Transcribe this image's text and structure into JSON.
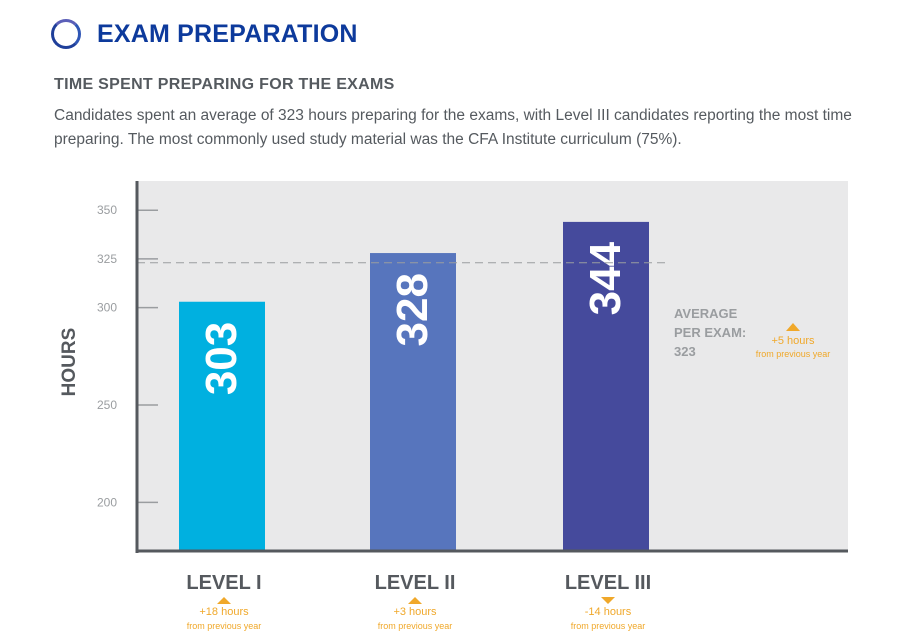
{
  "header": {
    "title": "EXAM PREPARATION"
  },
  "section": {
    "title": "TIME SPENT PREPARING FOR THE EXAMS",
    "description": "Candidates spent an average of 323 hours preparing for the exams, with Level III candidates reporting the most time preparing. The most commonly used study material was the CFA Institute curriculum (75%)."
  },
  "colors": {
    "level_1": "#00b0e0",
    "level_2": "#5775bd",
    "level_3": "#454a9c",
    "change_arrow": "#f0a82a",
    "plot_background": "#e9e9ea"
  },
  "chart_data": {
    "type": "bar",
    "categories": [
      "LEVEL I",
      "LEVEL II",
      "LEVEL III"
    ],
    "values": [
      303,
      328,
      344
    ],
    "value_labels": [
      "303",
      "328",
      "344"
    ],
    "ylabel": "HOURS",
    "yticks": [
      200,
      250,
      300,
      325,
      350
    ],
    "ylim": [
      175,
      365
    ],
    "grid": false,
    "changes": [
      {
        "direction": "up",
        "text": "+18 hours",
        "subtext": "from previous year"
      },
      {
        "direction": "up",
        "text": "+3 hours",
        "subtext": "from previous year"
      },
      {
        "direction": "down",
        "text": "-14 hours",
        "subtext": "from previous year"
      }
    ],
    "average": {
      "value": 323,
      "label_line1": "AVERAGE",
      "label_line2": "PER EXAM:",
      "value_text": "323",
      "change": {
        "direction": "up",
        "text": "+5 hours",
        "subtext": "from previous year"
      }
    }
  }
}
